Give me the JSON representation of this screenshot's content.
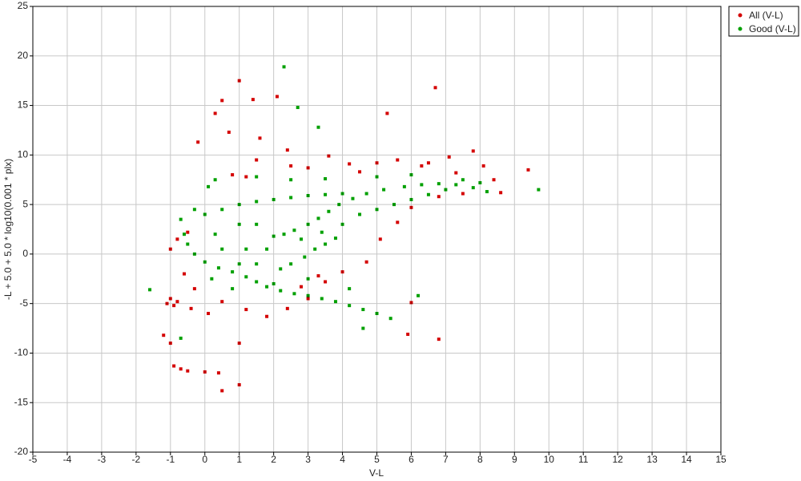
{
  "chart_data": {
    "type": "scatter",
    "x_label": "V-L",
    "y_label": "-L + 5.0 + 5.0 * log10(0.001 * plx)",
    "xlim": [
      -5,
      15
    ],
    "ylim": [
      -20,
      25
    ],
    "xticks": [
      -5,
      -4,
      -3,
      -2,
      -1,
      0,
      1,
      2,
      3,
      4,
      5,
      6,
      7,
      8,
      9,
      10,
      11,
      12,
      13,
      14,
      15
    ],
    "yticks": [
      -20,
      -15,
      -10,
      -5,
      0,
      5,
      10,
      15,
      20,
      25
    ],
    "grid": true,
    "legend": "top-right",
    "series": [
      {
        "name": "All (V-L)",
        "color": "#d40000",
        "x": [
          -1,
          -1.1,
          -0.9,
          -0.8,
          -1.2,
          -1,
          -0.9,
          -0.7,
          -0.5,
          0,
          0.4,
          0.5,
          1,
          0.3,
          1,
          0.5,
          1.4,
          2.1,
          5.3,
          6.7,
          9.4,
          6.8,
          5.9,
          6,
          -0.2,
          0.7,
          1.6,
          2.4,
          3.6,
          4.2,
          5,
          5.6,
          6.3,
          7.1,
          7.8,
          8.1,
          8.4,
          8.6,
          1.5,
          2.5,
          3,
          0.8,
          1.2,
          4.5,
          -0.5,
          -0.8,
          -1,
          -0.6,
          -0.3,
          0.5,
          1.2,
          1.8,
          2.4,
          3,
          3.5,
          4,
          4.7,
          5.1,
          5.6,
          6,
          6.8,
          7.5,
          3.3,
          2.8,
          0.1,
          -0.4,
          1,
          6.5,
          7.3
        ],
        "values": [
          -4.5,
          -5,
          -5.2,
          -4.8,
          -8.2,
          -9,
          -11.3,
          -11.6,
          -11.8,
          -11.9,
          -12,
          -13.8,
          -13.2,
          14.2,
          17.5,
          15.5,
          15.6,
          15.9,
          14.2,
          16.8,
          8.5,
          -8.6,
          -8.1,
          -4.9,
          11.3,
          12.3,
          11.7,
          10.5,
          9.9,
          9.1,
          9.2,
          9.5,
          8.9,
          9.8,
          10.4,
          8.9,
          7.5,
          6.2,
          9.5,
          8.9,
          8.7,
          8,
          7.8,
          8.3,
          2.2,
          1.5,
          0.5,
          -2,
          -3.5,
          -4.8,
          -5.6,
          -6.3,
          -5.5,
          -4.5,
          -2.8,
          -1.8,
          -0.8,
          1.5,
          3.2,
          4.7,
          5.8,
          6.1,
          -2.2,
          -3.3,
          -6,
          -5.5,
          -9,
          9.2,
          8.2
        ]
      },
      {
        "name": "Good (V-L)",
        "color": "#00a000",
        "x": [
          2.3,
          2.7,
          3.3,
          9.7,
          -1.6,
          -0.7,
          4.6,
          6.2,
          0.1,
          2,
          2.3,
          2.6,
          3,
          3.3,
          3.6,
          3.9,
          4.3,
          4.7,
          5.2,
          5.8,
          6.3,
          6.8,
          7.3,
          7.8,
          8.2,
          -0.7,
          -0.6,
          -0.5,
          -0.3,
          0,
          0.4,
          0.8,
          1.2,
          1.5,
          1.8,
          2.2,
          2.6,
          3,
          3.4,
          3.8,
          4.2,
          4.6,
          5,
          5.4,
          0,
          0.5,
          1,
          1.5,
          2,
          2.5,
          3,
          3.5,
          4,
          0.3,
          1,
          1.5,
          1.2,
          1.8,
          1.5,
          1,
          0.5,
          2.5,
          3,
          4.2,
          3.5,
          4,
          4.5,
          5,
          5.5,
          6,
          6.5,
          7,
          7.5,
          8,
          0.3,
          1.5,
          2.5,
          3.5,
          5,
          6,
          -0.3,
          0.2,
          0.8,
          2,
          2.2,
          2.9,
          3.2,
          3.8,
          2.8,
          3.4
        ],
        "values": [
          18.9,
          14.8,
          12.8,
          6.5,
          -3.6,
          -8.5,
          -7.5,
          -4.2,
          6.8,
          1.8,
          2,
          2.4,
          3,
          3.6,
          4.3,
          5,
          5.6,
          6.1,
          6.5,
          6.8,
          7,
          7.1,
          7,
          6.7,
          6.3,
          3.5,
          2,
          1,
          0,
          -0.8,
          -1.4,
          -1.8,
          -2.3,
          -2.8,
          -3.3,
          -3.7,
          -4,
          -4.2,
          -4.5,
          -4.8,
          -5.2,
          -5.6,
          -6,
          -6.5,
          4,
          4.5,
          5,
          5.3,
          5.5,
          5.7,
          5.9,
          6,
          6.1,
          2,
          3,
          3,
          0.5,
          0.5,
          -1,
          -1,
          0.5,
          -1,
          -2.5,
          -3.5,
          1,
          3,
          4,
          4.5,
          5,
          5.5,
          6,
          6.5,
          7.5,
          7.2,
          7.5,
          7.8,
          7.5,
          7.6,
          7.8,
          8,
          4.5,
          -2.5,
          -3.5,
          -3,
          -1.5,
          -0.3,
          0.5,
          1.6,
          1.5,
          2.2
        ]
      }
    ]
  }
}
